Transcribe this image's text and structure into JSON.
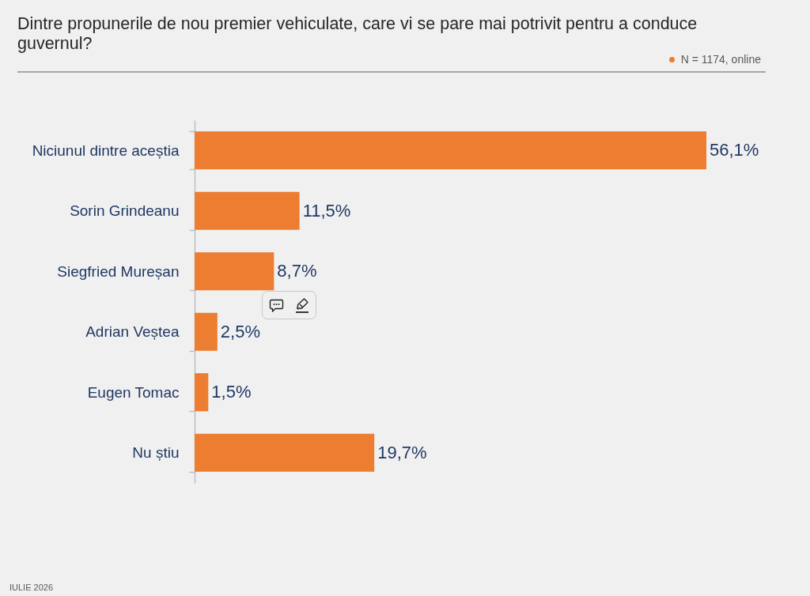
{
  "chart_data": {
    "type": "bar",
    "orientation": "horizontal",
    "title": "Dintre propunerile de nou premier vehiculate, care vi se pare mai potrivit pentru a conduce guvernul?",
    "subtitle": "N = 1174, online",
    "annotations": [
      "IULIE 2026"
    ],
    "categories": [
      "Niciunul dintre aceștia",
      "Sorin Grindeanu",
      "Siegfried Mureșan",
      "Adrian Veștea",
      "Eugen Tomac",
      "Nu știu"
    ],
    "values": [
      56.1,
      11.5,
      8.7,
      2.5,
      1.5,
      19.7
    ],
    "value_labels": [
      "56,1%",
      "11,5%",
      "8,7%",
      "2,5%",
      "1,5%",
      "19,7%"
    ],
    "color": "#ed7d31",
    "tick_labels": "y"
  }
}
